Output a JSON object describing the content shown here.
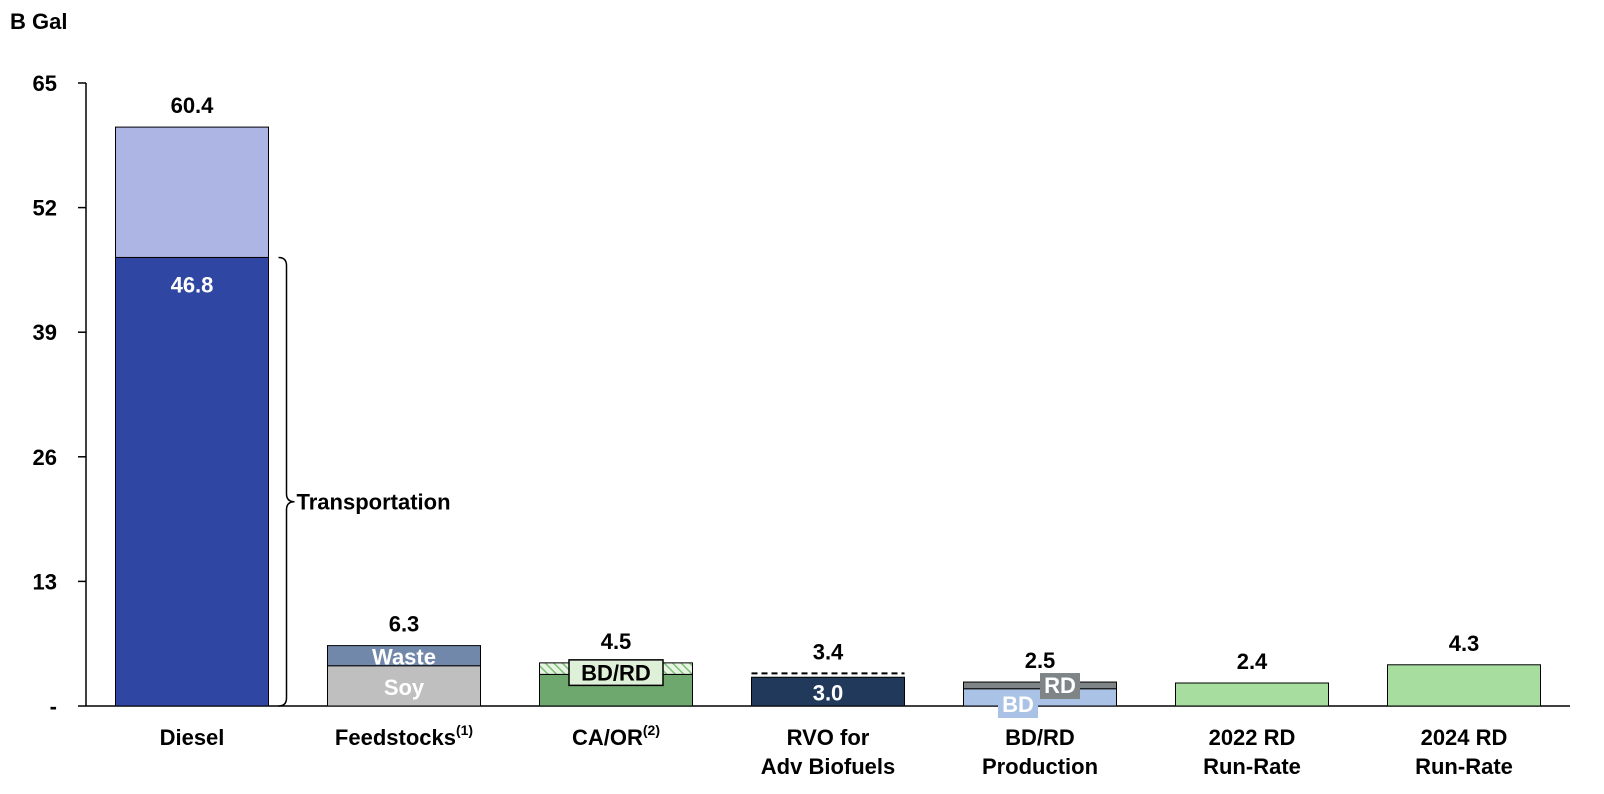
{
  "chart_data": {
    "type": "bar",
    "ylabel": "B Gal",
    "ylim": [
      0,
      65
    ],
    "yticks": [
      {
        "value": 0,
        "label": "-"
      },
      {
        "value": 13,
        "label": "13"
      },
      {
        "value": 26,
        "label": "26"
      },
      {
        "value": 39,
        "label": "39"
      },
      {
        "value": 52,
        "label": "52"
      },
      {
        "value": 65,
        "label": "65"
      }
    ],
    "grid": false,
    "legend": "none",
    "categories": [
      {
        "lines": [
          "Diesel"
        ],
        "sup": ""
      },
      {
        "lines": [
          "Feedstocks"
        ],
        "sup": "(1)"
      },
      {
        "lines": [
          "CA/OR"
        ],
        "sup": "(2)"
      },
      {
        "lines": [
          "RVO for",
          "Adv Biofuels"
        ],
        "sup": ""
      },
      {
        "lines": [
          "BD/RD",
          "Production"
        ],
        "sup": ""
      },
      {
        "lines": [
          "2022 RD",
          "Run-Rate"
        ],
        "sup": ""
      },
      {
        "lines": [
          "2024 RD",
          "Run-Rate"
        ],
        "sup": ""
      }
    ],
    "bars": [
      {
        "total_label": "60.4",
        "segments": [
          {
            "value": 46.8,
            "color": "#2f46a3",
            "label": "46.8",
            "label_color": "#ffffff"
          },
          {
            "value": 13.6,
            "color": "#adb5e5",
            "label": "",
            "label_color": ""
          }
        ]
      },
      {
        "total_label": "6.3",
        "segments": [
          {
            "value": 4.2,
            "color": "#bfbfbf",
            "label": "Soy",
            "label_color": "#ffffff"
          },
          {
            "value": 2.1,
            "color": "#7188ab",
            "label": "Waste",
            "label_color": "#ffffff"
          }
        ]
      },
      {
        "total_label": "4.5",
        "segments": [
          {
            "value": 3.3,
            "color": "#6fa86e",
            "label": "",
            "label_color": ""
          },
          {
            "value": 1.2,
            "color": "hatch",
            "label": "",
            "label_color": ""
          }
        ],
        "box_label": "BD/RD"
      },
      {
        "total_label": "3.4",
        "segments": [
          {
            "value": 3.0,
            "color": "#213a5c",
            "label": "3.0",
            "label_color": "#ffffff"
          },
          {
            "value": 0.4,
            "color": "dashed",
            "label": "",
            "label_color": ""
          }
        ]
      },
      {
        "total_label": "2.5",
        "segments": [
          {
            "value": 1.8,
            "color": "#a9c2e6",
            "label": "BD",
            "label_color": "#ffffff"
          },
          {
            "value": 0.7,
            "color": "#7f8487",
            "label": "RD",
            "label_color": "#ffffff"
          }
        ]
      },
      {
        "total_label": "2.4",
        "segments": [
          {
            "value": 2.4,
            "color": "#a7dd9f",
            "label": "",
            "label_color": ""
          }
        ]
      },
      {
        "total_label": "4.3",
        "segments": [
          {
            "value": 4.3,
            "color": "#a7dd9f",
            "label": "",
            "label_color": ""
          }
        ]
      }
    ],
    "annotations": [
      {
        "text": "Transportation",
        "type": "bracket",
        "bar_index": 0,
        "from": 0,
        "to": 46.8
      }
    ]
  }
}
